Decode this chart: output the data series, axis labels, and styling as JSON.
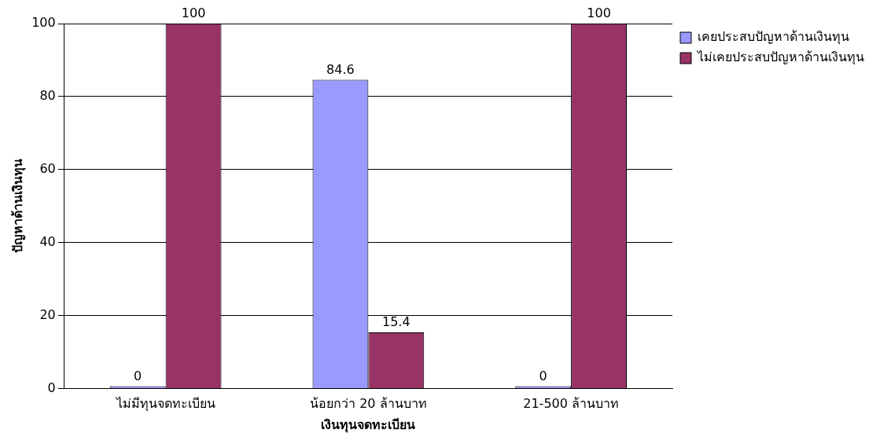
{
  "chart_data": {
    "type": "bar",
    "xlabel": "เงินทุนจดทะเบียน",
    "ylabel": "ปัญหาด้านเงินทุน",
    "categories": [
      "ไม่มีทุนจดทะเบียน",
      "น้อยกว่า 20 ล้านบาท",
      "21-500 ล้านบาท"
    ],
    "series": [
      {
        "name": "เคยประสบปัญหาด้านเงินทุน",
        "color": "#9999ff",
        "values": [
          0,
          84.6,
          0
        ]
      },
      {
        "name": "ไม่เคยประสบปัญหาด้านเงินทุน",
        "color": "#993366",
        "values": [
          100,
          15.4,
          100
        ]
      }
    ],
    "ylim": [
      0,
      100
    ],
    "yticks": [
      0,
      20,
      40,
      60,
      80,
      100
    ],
    "grid": "y",
    "legend": "top right",
    "data_labels": true
  }
}
